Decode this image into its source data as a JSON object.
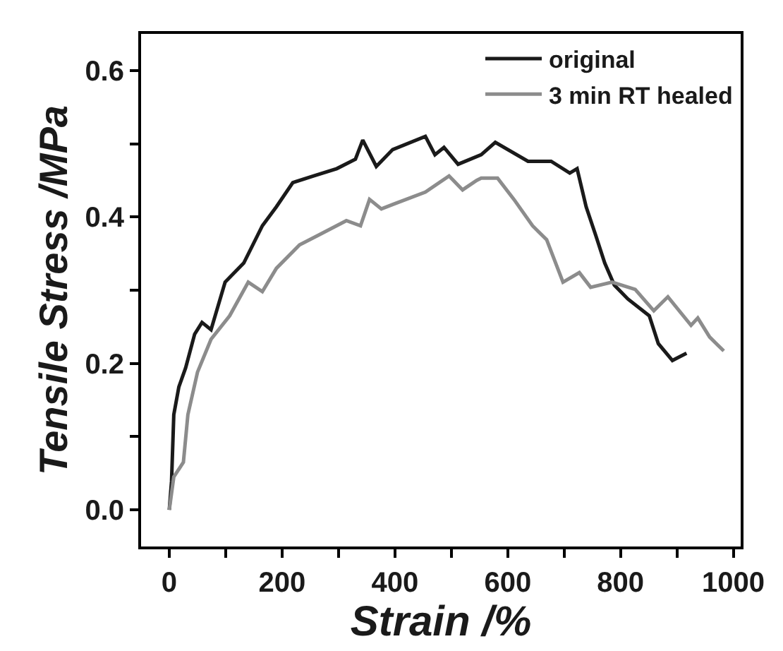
{
  "chart_data": {
    "type": "line",
    "xlabel": "Strain /%",
    "ylabel": "Tensile Stress /MPa",
    "xlim": [
      -50,
      1013
    ],
    "ylim": [
      -0.05,
      0.65
    ],
    "xticks": [
      0,
      {
        "value": 100,
        "label": null
      },
      200,
      {
        "value": 300,
        "label": null
      },
      400,
      {
        "value": 500,
        "label": null
      },
      600,
      {
        "value": 700,
        "label": null
      },
      800,
      {
        "value": 900,
        "label": null
      },
      1000
    ],
    "yticks": [
      {
        "value": 0,
        "label": "0.0"
      },
      {
        "value": 0.1,
        "label": null
      },
      0.2,
      {
        "value": 0.3,
        "label": null
      },
      0.4,
      {
        "value": 0.5,
        "label": null
      },
      0.6
    ],
    "legend": "top right",
    "marker": "none",
    "line_style": "solid",
    "series": [
      {
        "name": "original",
        "color": "#1a1a1a",
        "x": [
          0,
          4,
          8,
          17,
          29,
          45,
          58,
          74,
          99,
          132,
          165,
          190,
          219,
          256,
          297,
          330,
          343,
          367,
          396,
          454,
          471,
          487,
          512,
          553,
          578,
          636,
          677,
          710,
          723,
          739,
          756,
          772,
          789,
          813,
          851,
          867,
          892,
          917
        ],
        "values": [
          0.0,
          0.039,
          0.13,
          0.168,
          0.194,
          0.24,
          0.256,
          0.246,
          0.311,
          0.337,
          0.388,
          0.414,
          0.447,
          0.456,
          0.466,
          0.479,
          0.505,
          0.469,
          0.492,
          0.51,
          0.485,
          0.495,
          0.472,
          0.485,
          0.502,
          0.476,
          0.476,
          0.46,
          0.466,
          0.414,
          0.375,
          0.337,
          0.307,
          0.288,
          0.265,
          0.227,
          0.204,
          0.214
        ]
      },
      {
        "name": "3 min RT healed",
        "color": "#8c8c8c",
        "x": [
          0,
          8,
          25,
          33,
          50,
          74,
          107,
          140,
          165,
          190,
          231,
          264,
          314,
          339,
          355,
          376,
          396,
          454,
          496,
          520,
          545,
          553,
          582,
          611,
          644,
          669,
          698,
          727,
          747,
          785,
          826,
          859,
          884,
          925,
          937,
          958,
          983
        ],
        "values": [
          0.0,
          0.045,
          0.065,
          0.13,
          0.188,
          0.233,
          0.265,
          0.311,
          0.298,
          0.33,
          0.362,
          0.375,
          0.395,
          0.388,
          0.424,
          0.411,
          0.417,
          0.434,
          0.456,
          0.437,
          0.45,
          0.453,
          0.453,
          0.424,
          0.388,
          0.369,
          0.311,
          0.324,
          0.304,
          0.311,
          0.301,
          0.272,
          0.291,
          0.252,
          0.262,
          0.236,
          0.217
        ]
      }
    ]
  }
}
